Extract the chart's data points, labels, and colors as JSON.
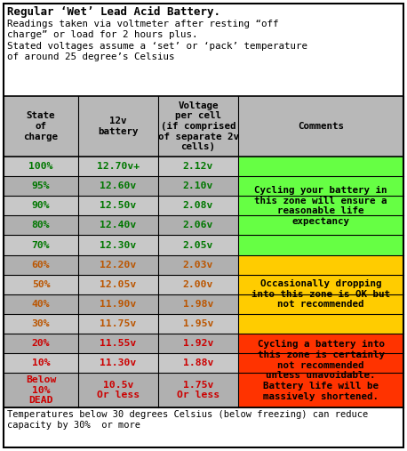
{
  "title_bold": "Regular ‘Wet’ Lead Acid Battery.",
  "title_sub": "Readings taken via voltmeter after resting “off\ncharge” or load for 2 hours plus.\nStated voltages assume a ‘set’ or ‘pack’ temperature\nof around 25 degree’s Celsius",
  "footer": "Temperatures below 30 degrees Celsius (below freezing) can reduce\ncapacity by 30%  or more",
  "col_headers": [
    "State\nof\ncharge",
    "12v\nbattery",
    "Voltage\nper cell\n(if comprised\nof separate 2v\ncells)",
    "Comments"
  ],
  "rows": [
    {
      "state": "100%",
      "v12": "12.70v+",
      "vcell": "2.12v",
      "zone": "green"
    },
    {
      "state": "95%",
      "v12": "12.60v",
      "vcell": "2.10v",
      "zone": "green"
    },
    {
      "state": "90%",
      "v12": "12.50v",
      "vcell": "2.08v",
      "zone": "green"
    },
    {
      "state": "80%",
      "v12": "12.40v",
      "vcell": "2.06v",
      "zone": "green"
    },
    {
      "state": "70%",
      "v12": "12.30v",
      "vcell": "2.05v",
      "zone": "green"
    },
    {
      "state": "60%",
      "v12": "12.20v",
      "vcell": "2.03v",
      "zone": "yellow"
    },
    {
      "state": "50%",
      "v12": "12.05v",
      "vcell": "2.00v",
      "zone": "yellow"
    },
    {
      "state": "40%",
      "v12": "11.90v",
      "vcell": "1.98v",
      "zone": "yellow"
    },
    {
      "state": "30%",
      "v12": "11.75v",
      "vcell": "1.95v",
      "zone": "yellow"
    },
    {
      "state": "20%",
      "v12": "11.55v",
      "vcell": "1.92v",
      "zone": "red"
    },
    {
      "state": "10%",
      "v12": "11.30v",
      "vcell": "1.88v",
      "zone": "red"
    },
    {
      "state": "Below\n10%\nDEAD",
      "v12": "10.5v\nOr less",
      "vcell": "1.75v\nOr less",
      "zone": "red"
    }
  ],
  "comments": {
    "green": "Cycling your battery in\nthis zone will ensure a\nreasonable life\nexpectancy",
    "yellow": "Occasionally dropping\ninto this zone is OK but\nnot recommended",
    "red": "Cycling a battery into\nthis zone is certainly\nnot recommended\nunless unavoidable.\nBattery life will be\nmassively shortened."
  },
  "zone_bg": {
    "green": "#66ff44",
    "yellow": "#ffcc00",
    "red": "#ff3300"
  },
  "zone_rows": {
    "green": [
      0,
      1,
      2,
      3,
      4
    ],
    "yellow": [
      5,
      6,
      7,
      8
    ],
    "red": [
      9,
      10,
      11
    ]
  },
  "text_colors": {
    "green": "#007700",
    "yellow": "#bb5500",
    "red": "#cc0000"
  },
  "header_bg": "#b8b8b8",
  "row_bg_even": "#c8c8c8",
  "row_bg_odd": "#b0b0b0",
  "border_color": "#000000",
  "fig_bg": "#ffffff",
  "title_fontsize": 9,
  "sub_fontsize": 7.8,
  "header_fontsize": 7.8,
  "cell_fontsize": 8.2,
  "comment_fontsize": 7.8,
  "footer_fontsize": 7.5
}
